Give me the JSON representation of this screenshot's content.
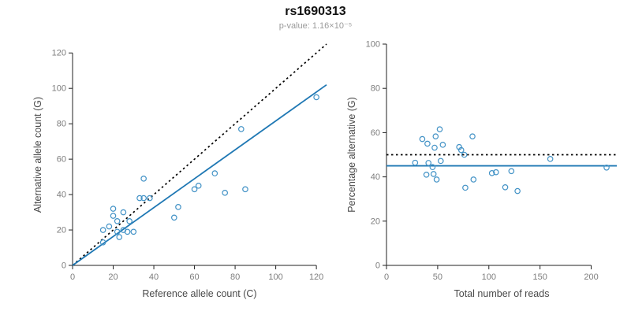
{
  "header": {
    "title": "rs1690313",
    "subtitle": "p-value: 1.16×10⁻⁵"
  },
  "colors": {
    "accent_line": "#1f78b4",
    "point_stroke": "#4292c6",
    "dotted_line": "#000000",
    "axis": "#222222",
    "tick_label": "#7d7d7d",
    "axis_label": "#4a4a4a"
  },
  "chart_data": [
    {
      "type": "scatter",
      "name": "alt-vs-ref-counts",
      "xlabel": "Reference allele count (C)",
      "ylabel": "Alternative allele count (G)",
      "xlim": [
        0,
        125
      ],
      "ylim": [
        0,
        125
      ],
      "xticks": [
        0,
        20,
        40,
        60,
        80,
        100,
        120
      ],
      "yticks": [
        0,
        20,
        40,
        60,
        80,
        100,
        120
      ],
      "grid": false,
      "points": [
        [
          15,
          13
        ],
        [
          15,
          20
        ],
        [
          18,
          22
        ],
        [
          20,
          28
        ],
        [
          20,
          32
        ],
        [
          22,
          19
        ],
        [
          22,
          25
        ],
        [
          23,
          16
        ],
        [
          25,
          20
        ],
        [
          25,
          30
        ],
        [
          27,
          19
        ],
        [
          28,
          25
        ],
        [
          30,
          19
        ],
        [
          33,
          38
        ],
        [
          35,
          38
        ],
        [
          35,
          49
        ],
        [
          38,
          38
        ],
        [
          50,
          27
        ],
        [
          52,
          33
        ],
        [
          60,
          43
        ],
        [
          62,
          45
        ],
        [
          70,
          52
        ],
        [
          75,
          41
        ],
        [
          83,
          77
        ],
        [
          85,
          43
        ],
        [
          120,
          95
        ]
      ],
      "lines": [
        {
          "name": "identity-line",
          "style": "dotted",
          "color": "#000000",
          "from": [
            0,
            0
          ],
          "to": [
            125,
            125
          ]
        },
        {
          "name": "fit-line",
          "style": "solid",
          "color": "#1f78b4",
          "from": [
            0,
            0
          ],
          "to": [
            125,
            102
          ]
        }
      ]
    },
    {
      "type": "scatter",
      "name": "pct-alt-vs-total-reads",
      "xlabel": "Total number of reads",
      "ylabel": "Percentage alternative (G)",
      "xlim": [
        0,
        225
      ],
      "ylim": [
        0,
        100
      ],
      "xticks": [
        0,
        50,
        100,
        150,
        200
      ],
      "yticks": [
        0,
        20,
        40,
        60,
        80,
        100
      ],
      "grid": false,
      "points": [
        [
          28,
          46.4
        ],
        [
          35,
          57.1
        ],
        [
          40,
          55.0
        ],
        [
          48,
          58.3
        ],
        [
          52,
          61.5
        ],
        [
          41,
          46.3
        ],
        [
          47,
          53.2
        ],
        [
          39,
          41.0
        ],
        [
          45,
          44.4
        ],
        [
          55,
          54.5
        ],
        [
          46,
          41.3
        ],
        [
          53,
          47.2
        ],
        [
          49,
          38.8
        ],
        [
          71,
          53.5
        ],
        [
          73,
          52.1
        ],
        [
          84,
          58.3
        ],
        [
          76,
          50.0
        ],
        [
          77,
          35.1
        ],
        [
          85,
          38.8
        ],
        [
          103,
          41.7
        ],
        [
          107,
          42.1
        ],
        [
          122,
          42.6
        ],
        [
          116,
          35.3
        ],
        [
          160,
          48.1
        ],
        [
          128,
          33.6
        ],
        [
          215,
          44.2
        ]
      ],
      "lines": [
        {
          "name": "expected-50pct-line",
          "style": "dotted",
          "color": "#000000",
          "y": 50
        },
        {
          "name": "mean-pct-line",
          "style": "solid",
          "color": "#1f78b4",
          "y": 45
        }
      ]
    }
  ]
}
